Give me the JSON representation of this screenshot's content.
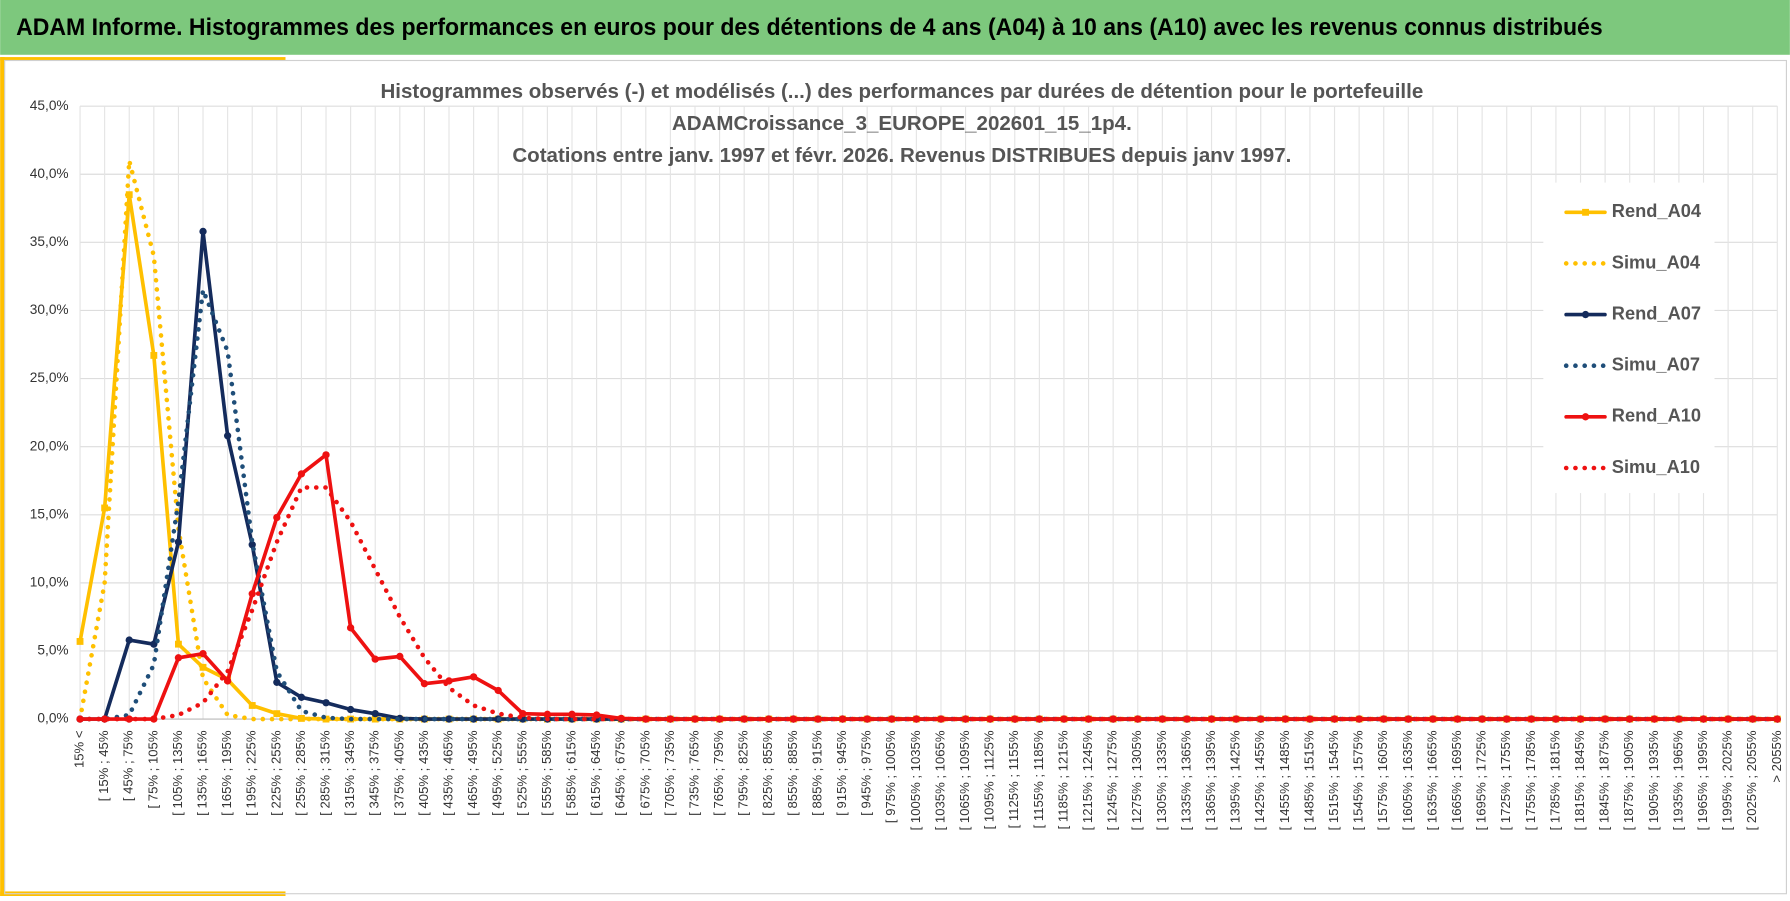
{
  "header": {
    "title": "ADAM Informe. Histogrammes des performances en euros pour des détentions de 4 ans (A04) à 10 ans (A10) avec les revenus connus distribués"
  },
  "chart_data": {
    "type": "line",
    "title": [
      "Histogrammes observés (-) et modélisés (...) des performances par durées de détention pour le portefeuille",
      "ADAMCroissance_3_EUROPE_202601_15_1p4.",
      "Cotations entre janv. 1997 et févr. 2026. Revenus DISTRIBUES depuis janv 1997."
    ],
    "categories": [
      "15% <",
      "[ 15% ; 45%",
      "[ 45% ; 75%",
      "[ 75% ; 105%",
      "[ 105% ; 135%",
      "[ 135% ; 165%",
      "[ 165% ; 195%",
      "[ 195% ; 225%",
      "[ 225% ; 255%",
      "[ 255% ; 285%",
      "[ 285% ; 315%",
      "[ 315% ; 345%",
      "[ 345% ; 375%",
      "[ 375% ; 405%",
      "[ 405% ; 435%",
      "[ 435% ; 465%",
      "[ 465% ; 495%",
      "[ 495% ; 525%",
      "[ 525% ; 555%",
      "[ 555% ; 585%",
      "[ 585% ; 615%",
      "[ 615% ; 645%",
      "[ 645% ; 675%",
      "[ 675% ; 705%",
      "[ 705% ; 735%",
      "[ 735% ; 765%",
      "[ 765% ; 795%",
      "[ 795% ; 825%",
      "[ 825% ; 855%",
      "[ 855% ; 885%",
      "[ 885% ; 915%",
      "[ 915% ; 945%",
      "[ 945% ; 975%",
      "[ 975% ; 1005%",
      "[ 1005% ; 1035%",
      "[ 1035% ; 1065%",
      "[ 1065% ; 1095%",
      "[ 1095% ; 1125%",
      "[ 1125% ; 1155%",
      "[ 1155% ; 1185%",
      "[ 1185% ; 1215%",
      "[ 1215% ; 1245%",
      "[ 1245% ; 1275%",
      "[ 1275% ; 1305%",
      "[ 1305% ; 1335%",
      "[ 1335% ; 1365%",
      "[ 1365% ; 1395%",
      "[ 1395% ; 1425%",
      "[ 1425% ; 1455%",
      "[ 1455% ; 1485%",
      "[ 1485% ; 1515%",
      "[ 1515% ; 1545%",
      "[ 1545% ; 1575%",
      "[ 1575% ; 1605%",
      "[ 1605% ; 1635%",
      "[ 1635% ; 1665%",
      "[ 1665% ; 1695%",
      "[ 1695% ; 1725%",
      "[ 1725% ; 1755%",
      "[ 1755% ; 1785%",
      "[ 1785% ; 1815%",
      "[ 1815% ; 1845%",
      "[ 1845% ; 1875%",
      "[ 1875% ; 1905%",
      "[ 1905% ; 1935%",
      "[ 1935% ; 1965%",
      "[ 1965% ; 1995%",
      "[ 1995% ; 2025%",
      "[ 2025% ; 2055%",
      "> 2055%"
    ],
    "series": [
      {
        "name": "Rend_A04",
        "color": "#ffc000",
        "style": "solid",
        "marker": "square",
        "values": [
          5.7,
          15.5,
          38.5,
          26.7,
          5.5,
          3.8,
          2.9,
          1.0,
          0.4,
          0.05,
          0,
          0,
          0,
          0,
          0,
          0,
          0,
          0,
          0,
          0,
          0,
          0,
          0,
          0,
          0,
          0,
          0,
          0,
          0,
          0,
          0,
          0,
          0,
          0,
          0,
          0,
          0,
          0,
          0,
          0,
          0,
          0,
          0,
          0,
          0,
          0,
          0,
          0,
          0,
          0,
          0,
          0,
          0,
          0,
          0,
          0,
          0,
          0,
          0,
          0,
          0,
          0,
          0,
          0,
          0,
          0,
          0,
          0,
          0,
          0
        ]
      },
      {
        "name": "Simu_A04",
        "color": "#ffc000",
        "style": "dotted",
        "marker": "none",
        "values": [
          0,
          10,
          41,
          34,
          14,
          3,
          0.3,
          0,
          0,
          0,
          0,
          0,
          0,
          0,
          0,
          0,
          0,
          0,
          0,
          0,
          0,
          0,
          0,
          0,
          0,
          0,
          0,
          0,
          0,
          0,
          0,
          0,
          0,
          0,
          0,
          0,
          0,
          0,
          0,
          0,
          0,
          0,
          0,
          0,
          0,
          0,
          0,
          0,
          0,
          0,
          0,
          0,
          0,
          0,
          0,
          0,
          0,
          0,
          0,
          0,
          0,
          0,
          0,
          0,
          0,
          0,
          0,
          0,
          0,
          0
        ]
      },
      {
        "name": "Rend_A07",
        "color": "#142b5c",
        "style": "solid",
        "marker": "circle",
        "values": [
          0,
          0,
          5.8,
          5.5,
          13,
          35.8,
          20.8,
          12.8,
          2.7,
          1.6,
          1.2,
          0.7,
          0.4,
          0.05,
          0,
          0,
          0,
          0,
          0,
          0,
          0,
          0,
          0,
          0,
          0,
          0,
          0,
          0,
          0,
          0,
          0,
          0,
          0,
          0,
          0,
          0,
          0,
          0,
          0,
          0,
          0,
          0,
          0,
          0,
          0,
          0,
          0,
          0,
          0,
          0,
          0,
          0,
          0,
          0,
          0,
          0,
          0,
          0,
          0,
          0,
          0,
          0,
          0,
          0,
          0,
          0,
          0,
          0,
          0,
          0
        ]
      },
      {
        "name": "Simu_A07",
        "color": "#1f4e79",
        "style": "dotted",
        "marker": "none",
        "values": [
          0,
          0,
          0.3,
          4,
          16,
          31.5,
          27,
          13,
          3.5,
          0.6,
          0.1,
          0,
          0,
          0,
          0,
          0,
          0,
          0,
          0,
          0,
          0,
          0,
          0,
          0,
          0,
          0,
          0,
          0,
          0,
          0,
          0,
          0,
          0,
          0,
          0,
          0,
          0,
          0,
          0,
          0,
          0,
          0,
          0,
          0,
          0,
          0,
          0,
          0,
          0,
          0,
          0,
          0,
          0,
          0,
          0,
          0,
          0,
          0,
          0,
          0,
          0,
          0,
          0,
          0,
          0,
          0,
          0,
          0,
          0,
          0
        ]
      },
      {
        "name": "Rend_A10",
        "color": "#ee1111",
        "style": "solid",
        "marker": "circle",
        "values": [
          0,
          0,
          0,
          0,
          4.5,
          4.8,
          2.8,
          9.2,
          14.8,
          18,
          19.4,
          6.7,
          4.4,
          4.6,
          2.6,
          2.8,
          3.1,
          2.1,
          0.4,
          0.35,
          0.35,
          0.3,
          0.05,
          0,
          0,
          0,
          0,
          0,
          0,
          0,
          0,
          0,
          0,
          0,
          0,
          0,
          0,
          0,
          0,
          0,
          0,
          0,
          0,
          0,
          0,
          0,
          0,
          0,
          0,
          0,
          0,
          0,
          0,
          0,
          0,
          0,
          0,
          0,
          0,
          0,
          0,
          0,
          0,
          0,
          0,
          0,
          0,
          0,
          0,
          0
        ]
      },
      {
        "name": "Simu_A10",
        "color": "#ee1111",
        "style": "dotted",
        "marker": "none",
        "values": [
          0,
          0,
          0,
          0,
          0.3,
          1.2,
          3.5,
          8,
          13,
          17,
          17,
          14.5,
          11,
          7.5,
          4.5,
          2.3,
          1,
          0.4,
          0.1,
          0,
          0,
          0,
          0,
          0,
          0,
          0,
          0,
          0,
          0,
          0,
          0,
          0,
          0,
          0,
          0,
          0,
          0,
          0,
          0,
          0,
          0,
          0,
          0,
          0,
          0,
          0,
          0,
          0,
          0,
          0,
          0,
          0,
          0,
          0,
          0,
          0,
          0,
          0,
          0,
          0,
          0,
          0,
          0,
          0,
          0,
          0,
          0,
          0,
          0,
          0
        ]
      }
    ],
    "ylim": [
      0,
      45
    ],
    "yticks": [
      {
        "value": 0,
        "label": "0,0%"
      },
      {
        "value": 5,
        "label": "5,0%"
      },
      {
        "value": 10,
        "label": "10,0%"
      },
      {
        "value": 15,
        "label": "15,0%"
      },
      {
        "value": 20,
        "label": "20,0%"
      },
      {
        "value": 25,
        "label": "25,0%"
      },
      {
        "value": 30,
        "label": "30,0%"
      },
      {
        "value": 35,
        "label": "35,0%"
      },
      {
        "value": 40,
        "label": "40,0%"
      },
      {
        "value": 45,
        "label": "45,0%"
      }
    ],
    "grid": true,
    "legend": "right"
  }
}
